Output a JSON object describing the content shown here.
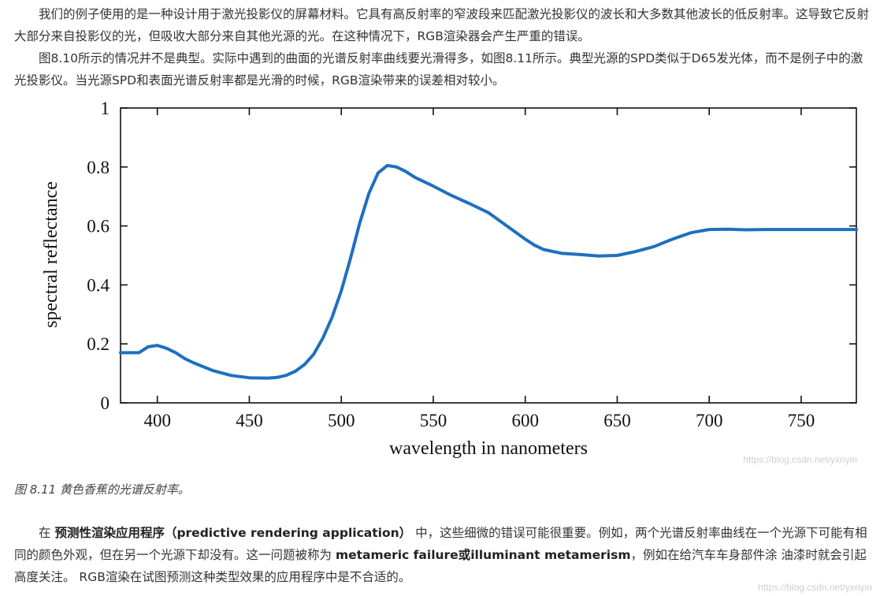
{
  "paragraph1": "我们的例子使用的是一种设计用于激光投影仪的屏幕材料。它具有高反射率的窄波段来匹配激光投影仪的波长和大多数其他波长的低反射率。这导致它反射大部分来自投影仪的光，但吸收大部分来自其他光源的光。在这种情况下，RGB渲染器会产生严重的错误。",
  "paragraph2": "图8.10所示的情况并不是典型。实际中遇到的曲面的光谱反射率曲线要光滑得多，如图8.11所示。典型光源的SPD类似于D65发光体，而不是例子中的激光投影仪。当光源SPD和表面光谱反射率都是光滑的时候，RGB渲染带来的误差相对较小。",
  "caption": "图 8.11  黄色香蕉的光谱反射率。",
  "paragraph3": {
    "t1": "在 ",
    "b1": "预测性渲染应用程序（predictive rendering application）",
    "t2": " 中，这些细微的错误可能很重要。例如，两个光谱反射率曲线在一个光源下可能有相同的颜色外观，但在另一个光源下却没有。这一问题被称为 ",
    "b2": "metameric failure或illuminant metamerism",
    "t3": "，例如在给汽车车身部件涂 油漆时就会引起高度关注。 RGB渲染在试图预测这种类型效果的应用程序中是不合适的。"
  },
  "watermark_figure": "https://blog.csdn.net/yxriyin",
  "watermark_page": "https://blog.csdn.net/yxriyin",
  "chart_data": {
    "type": "line",
    "title": "",
    "xlabel": "wavelength in nanometers",
    "ylabel": "spectral reflectance",
    "xlim": [
      380,
      780
    ],
    "ylim": [
      0,
      1
    ],
    "x_ticks": [
      400,
      450,
      500,
      550,
      600,
      650,
      700,
      750
    ],
    "y_ticks": [
      0,
      0.2,
      0.4,
      0.6,
      0.8,
      1
    ],
    "y_tick_labels": [
      "0",
      "0.2",
      "0.4",
      "0.6",
      "0.8",
      "1"
    ],
    "grid": false,
    "line_color": "#1f6fc0",
    "series": [
      {
        "x": [
          380,
          390,
          395,
          400,
          405,
          410,
          415,
          420,
          430,
          440,
          450,
          460,
          465,
          470,
          475,
          480,
          485,
          490,
          495,
          500,
          505,
          510,
          515,
          520,
          525,
          530,
          535,
          540,
          550,
          560,
          570,
          580,
          590,
          600,
          605,
          610,
          620,
          630,
          640,
          650,
          660,
          670,
          680,
          690,
          700,
          710,
          720,
          730,
          740,
          750,
          760,
          770,
          780
        ],
        "y": [
          0.17,
          0.17,
          0.19,
          0.195,
          0.185,
          0.17,
          0.15,
          0.135,
          0.11,
          0.093,
          0.085,
          0.084,
          0.086,
          0.093,
          0.107,
          0.13,
          0.165,
          0.22,
          0.29,
          0.38,
          0.49,
          0.61,
          0.71,
          0.78,
          0.805,
          0.8,
          0.785,
          0.765,
          0.735,
          0.703,
          0.675,
          0.645,
          0.6,
          0.555,
          0.535,
          0.52,
          0.507,
          0.503,
          0.498,
          0.5,
          0.513,
          0.53,
          0.555,
          0.577,
          0.588,
          0.589,
          0.587,
          0.588,
          0.588,
          0.588,
          0.588,
          0.588,
          0.588
        ]
      }
    ]
  }
}
